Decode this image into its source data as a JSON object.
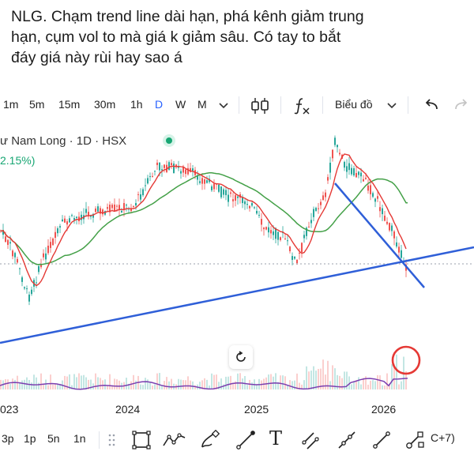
{
  "caption": {
    "line1": "NLG. Chạm trend line dài hạn, phá kênh giảm trung",
    "line2": "hạn, cụm vol to mà giá k giảm sâu. Có tay to bắt",
    "line3": "đáy giá này rùi hay sao á"
  },
  "toolbar": {
    "timeframes": [
      "1m",
      "5m",
      "15m",
      "30m",
      "1h",
      "D",
      "W",
      "M"
    ],
    "active_timeframe": "D",
    "icons": [
      "chevron-down-icon",
      "candles-icon",
      "indicator-fx-icon",
      "undo-icon",
      "redo-icon"
    ],
    "chart_type_label": "Biểu đồ"
  },
  "chart": {
    "symbol_title": "ư Nam Long · 1D · HSX",
    "change_pct": "2.15%)",
    "years": [
      "023",
      "2024",
      "2025",
      "2026"
    ],
    "colors": {
      "candle_up": "#26a69a",
      "candle_down": "#ef5350",
      "ma_short": "#e53935",
      "ma_long": "#43a047",
      "trendline": "#2f5fd8",
      "highlight_circle": "#e53935",
      "live_dot": "#17a673"
    },
    "annotations": [
      "long-term-uptrend-line",
      "medium-term-downtrend-line",
      "volume-cluster-circle"
    ]
  },
  "chart_data": {
    "type": "line",
    "series": []
  },
  "drawing_bar": {
    "timeframes": [
      "3p",
      "1p",
      "5n",
      "1n"
    ],
    "tools": [
      "rectangle-icon",
      "polyline-icon",
      "brush-icon",
      "trendline-icon",
      "text-icon",
      "channel-icon",
      "ray-icon",
      "segment-icon",
      "path-icon"
    ],
    "text_tool_glyph": "T",
    "shortcut_label": "C+7)"
  }
}
